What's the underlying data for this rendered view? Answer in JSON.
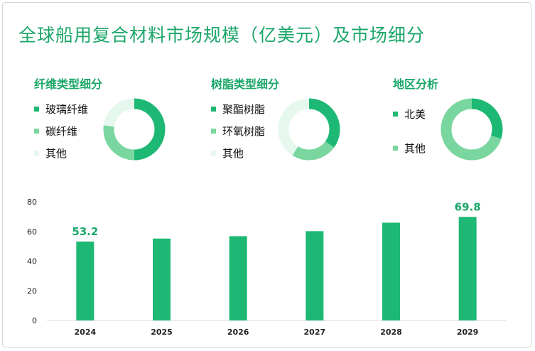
{
  "title": "全球船用复合材料市场规模（亿美元）及市场细分",
  "colors": {
    "dark": "#1db874",
    "medium": "#79d69e",
    "light": "#e6f7ee",
    "text_accent": "#1aa668"
  },
  "segments": [
    {
      "title": "纤维类型细分",
      "items": [
        {
          "label": "玻璃纤维",
          "value": 0.5,
          "color": "#1db874"
        },
        {
          "label": "碳纤维",
          "value": 0.27,
          "color": "#79d69e"
        },
        {
          "label": "其他",
          "value": 0.23,
          "color": "#e6f7ee"
        }
      ]
    },
    {
      "title": "树脂类型细分",
      "items": [
        {
          "label": "聚酯树脂",
          "value": 0.35,
          "color": "#1db874"
        },
        {
          "label": "环氧树脂",
          "value": 0.24,
          "color": "#79d69e"
        },
        {
          "label": "其他",
          "value": 0.41,
          "color": "#e6f7ee"
        }
      ]
    },
    {
      "title": "地区分析",
      "items": [
        {
          "label": "北美",
          "value": 0.3,
          "color": "#1db874"
        },
        {
          "label": "其他",
          "value": 0.7,
          "color": "#79d69e"
        }
      ]
    }
  ],
  "chart_data": {
    "type": "bar",
    "categories": [
      "2024",
      "2025",
      "2026",
      "2027",
      "2028",
      "2029"
    ],
    "values": [
      53.2,
      55.2,
      56.8,
      60.2,
      65.9,
      69.8
    ],
    "value_labels": [
      "53.2",
      "",
      "",
      "",
      "",
      "69.8"
    ],
    "yticks": [
      "0",
      "20",
      "40",
      "60",
      "80"
    ],
    "ylim": [
      0,
      80
    ],
    "bar_color": "#1db874",
    "grid": false
  }
}
